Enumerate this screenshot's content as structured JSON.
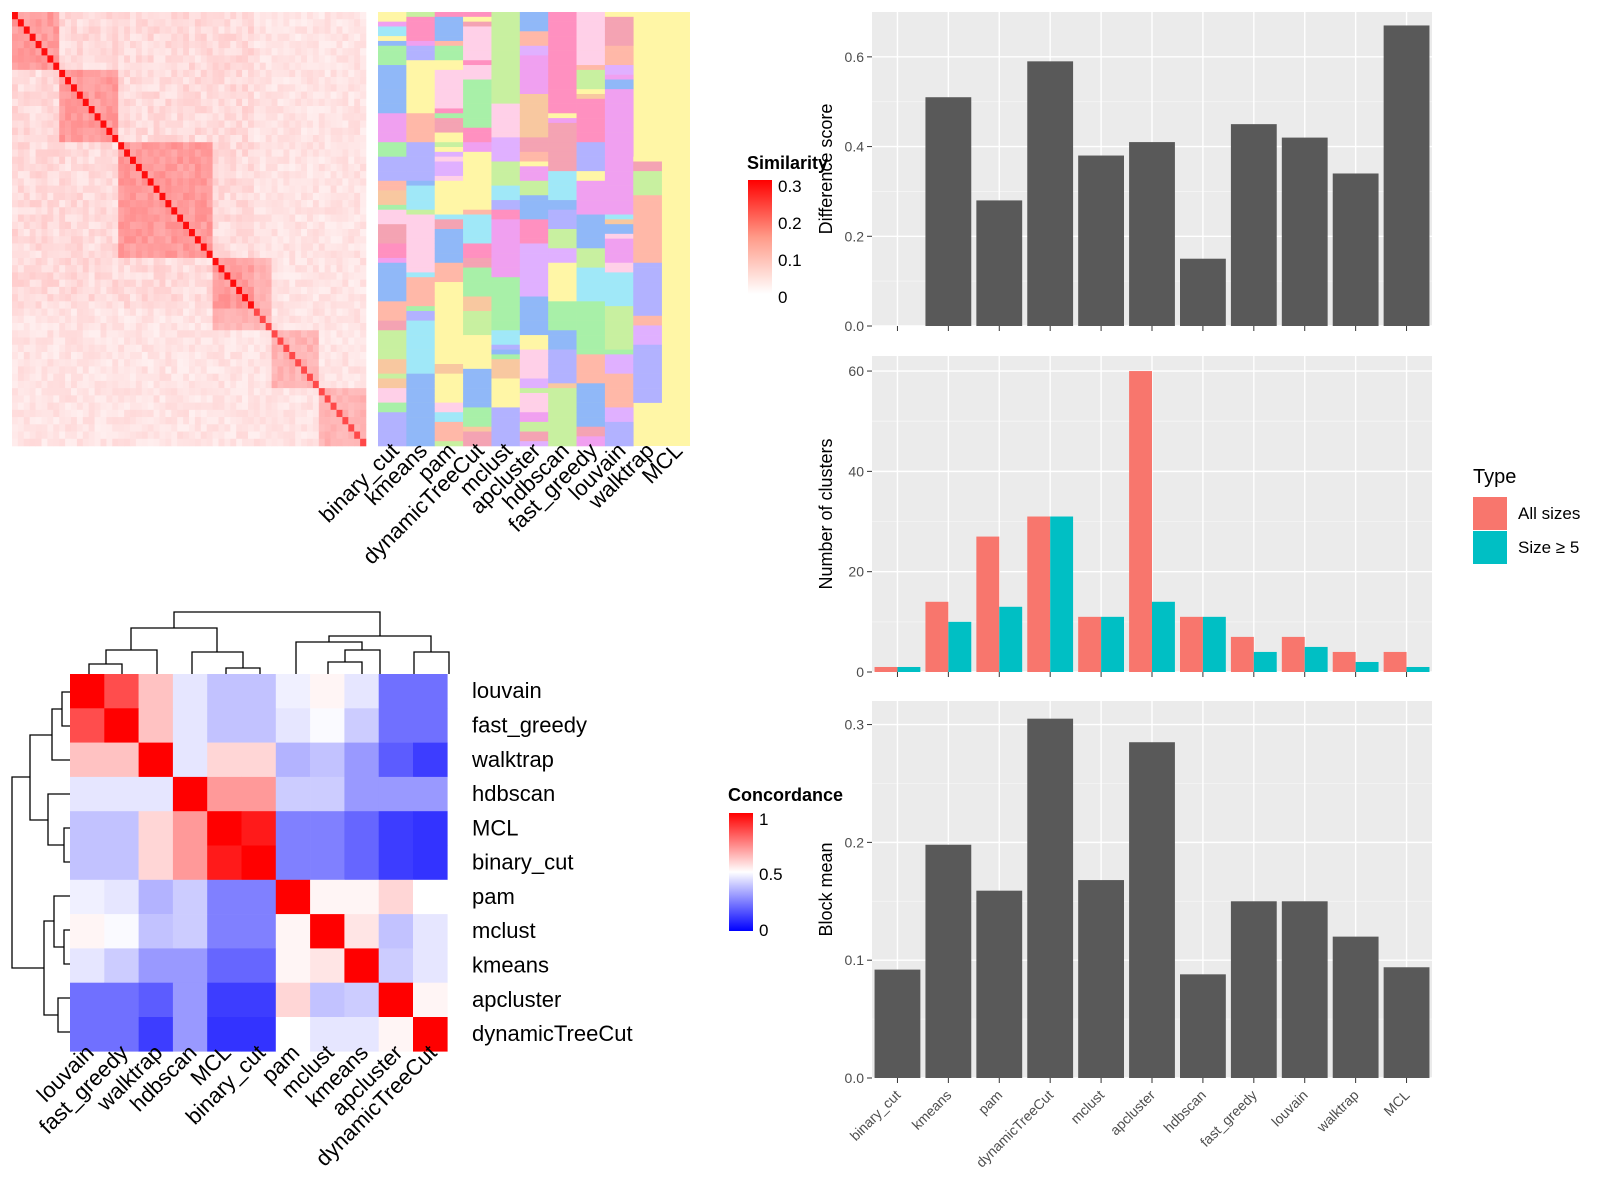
{
  "similarity_heatmap": {
    "legend_title": "Similarity",
    "legend_ticks": [
      "0.3",
      "0.2",
      "0.1",
      "0"
    ],
    "method_labels": [
      "binary_cut",
      "kmeans",
      "pam",
      "dynamicTreeCut",
      "mclust",
      "apcluster",
      "hdbscan",
      "fast_greedy",
      "louvain",
      "walktrap",
      "MCL"
    ]
  },
  "concordance_heatmap": {
    "legend_title": "Concordance",
    "legend_ticks": [
      "1",
      "0.5",
      "0"
    ],
    "row_labels": [
      "louvain",
      "fast_greedy",
      "walktrap",
      "hdbscan",
      "MCL",
      "binary_cut",
      "pam",
      "mclust",
      "kmeans",
      "apcluster",
      "dynamicTreeCut"
    ],
    "col_labels": [
      "louvain",
      "fast_greedy",
      "walktrap",
      "hdbscan",
      "MCL",
      "binary_cut",
      "pam",
      "mclust",
      "kmeans",
      "apcluster",
      "dynamicTreeCut"
    ]
  },
  "colors": {
    "bar_gray": "#595959",
    "all_sizes": "#F8766D",
    "size_ge5": "#00BFC4",
    "panel_bg": "#EBEBEB"
  },
  "chart_data": [
    {
      "type": "heatmap",
      "title": "",
      "legend_title": "Similarity",
      "value_range": [
        0,
        0.3
      ]
    },
    {
      "type": "heatmap",
      "title": "",
      "legend_title": "Concordance",
      "value_range": [
        0,
        1
      ],
      "rows": [
        "louvain",
        "fast_greedy",
        "walktrap",
        "hdbscan",
        "MCL",
        "binary_cut",
        "pam",
        "mclust",
        "kmeans",
        "apcluster",
        "dynamicTreeCut"
      ],
      "cols": [
        "louvain",
        "fast_greedy",
        "walktrap",
        "hdbscan",
        "MCL",
        "binary_cut",
        "pam",
        "mclust",
        "kmeans",
        "apcluster",
        "dynamicTreeCut"
      ],
      "values": [
        [
          1.0,
          0.85,
          0.62,
          0.45,
          0.38,
          0.38,
          0.47,
          0.52,
          0.45,
          0.22,
          0.22
        ],
        [
          0.85,
          1.0,
          0.62,
          0.45,
          0.38,
          0.38,
          0.45,
          0.49,
          0.4,
          0.22,
          0.22
        ],
        [
          0.62,
          0.62,
          1.0,
          0.45,
          0.58,
          0.58,
          0.35,
          0.38,
          0.3,
          0.18,
          0.12
        ],
        [
          0.45,
          0.45,
          0.45,
          1.0,
          0.7,
          0.7,
          0.4,
          0.4,
          0.3,
          0.3,
          0.3
        ],
        [
          0.38,
          0.38,
          0.58,
          0.7,
          1.0,
          0.95,
          0.25,
          0.25,
          0.2,
          0.12,
          0.1
        ],
        [
          0.38,
          0.38,
          0.58,
          0.7,
          0.95,
          1.0,
          0.25,
          0.25,
          0.2,
          0.12,
          0.1
        ],
        [
          0.47,
          0.45,
          0.35,
          0.4,
          0.25,
          0.25,
          1.0,
          0.52,
          0.52,
          0.58,
          0.5
        ],
        [
          0.52,
          0.49,
          0.38,
          0.4,
          0.25,
          0.25,
          0.52,
          1.0,
          0.55,
          0.38,
          0.45
        ],
        [
          0.45,
          0.4,
          0.3,
          0.3,
          0.2,
          0.2,
          0.52,
          0.55,
          1.0,
          0.4,
          0.45
        ],
        [
          0.22,
          0.22,
          0.18,
          0.3,
          0.12,
          0.12,
          0.58,
          0.38,
          0.4,
          1.0,
          0.52
        ],
        [
          0.22,
          0.22,
          0.12,
          0.3,
          0.1,
          0.1,
          0.5,
          0.45,
          0.45,
          0.52,
          1.0
        ]
      ]
    },
    {
      "type": "bar",
      "xlabel": "",
      "ylabel": "Difference score",
      "categories": [
        "binary_cut",
        "kmeans",
        "pam",
        "dynamicTreeCut",
        "mclust",
        "apcluster",
        "hdbscan",
        "fast_greedy",
        "louvain",
        "walktrap",
        "MCL"
      ],
      "values": [
        0,
        0.51,
        0.28,
        0.59,
        0.38,
        0.41,
        0.15,
        0.45,
        0.42,
        0.34,
        0.67
      ],
      "ylim": [
        0,
        0.7
      ],
      "yticks": [
        0.0,
        0.2,
        0.4,
        0.6
      ],
      "ytick_labels": [
        "0.0",
        "0.2",
        "0.4",
        "0.6"
      ]
    },
    {
      "type": "bar",
      "xlabel": "",
      "ylabel": "Number of clusters",
      "categories": [
        "binary_cut",
        "kmeans",
        "pam",
        "dynamicTreeCut",
        "mclust",
        "apcluster",
        "hdbscan",
        "fast_greedy",
        "louvain",
        "walktrap",
        "MCL"
      ],
      "legend_title": "Type",
      "legend_position": "right",
      "series": [
        {
          "name": "All sizes",
          "values": [
            1,
            14,
            27,
            31,
            11,
            60,
            11,
            7,
            7,
            4,
            4
          ]
        },
        {
          "name": "Size ≥ 5",
          "values": [
            1,
            10,
            13,
            31,
            11,
            14,
            11,
            4,
            5,
            2,
            1
          ]
        }
      ],
      "ylim": [
        0,
        63
      ],
      "yticks": [
        0,
        20,
        40,
        60
      ],
      "ytick_labels": [
        "0",
        "20",
        "40",
        "60"
      ]
    },
    {
      "type": "bar",
      "xlabel": "",
      "ylabel": "Block mean",
      "categories": [
        "binary_cut",
        "kmeans",
        "pam",
        "dynamicTreeCut",
        "mclust",
        "apcluster",
        "hdbscan",
        "fast_greedy",
        "louvain",
        "walktrap",
        "MCL"
      ],
      "values": [
        0.092,
        0.198,
        0.159,
        0.305,
        0.168,
        0.285,
        0.088,
        0.15,
        0.15,
        0.12,
        0.094
      ],
      "ylim": [
        0,
        0.32
      ],
      "yticks": [
        0.0,
        0.1,
        0.2,
        0.3
      ],
      "ytick_labels": [
        "0.0",
        "0.1",
        "0.2",
        "0.3"
      ]
    }
  ]
}
